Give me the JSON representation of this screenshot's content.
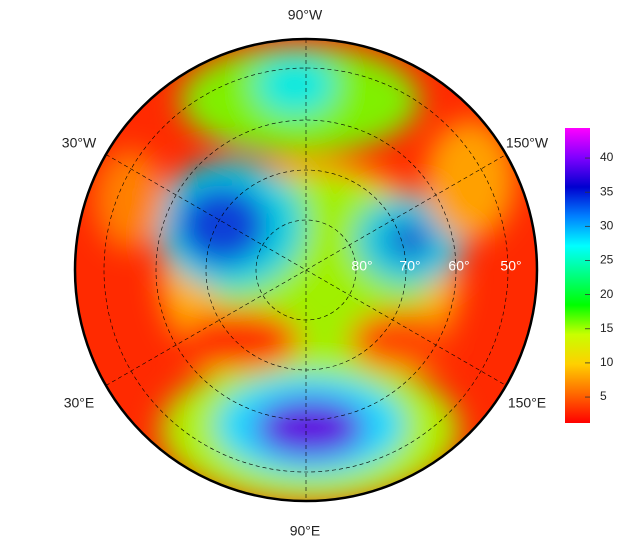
{
  "map": {
    "longitude_labels": [
      "90°W",
      "30°W",
      "150°W",
      "30°E",
      "150°E",
      "90°E"
    ],
    "latitude_labels": [
      "80°",
      "70°",
      "60°",
      "50°"
    ]
  },
  "colorbar": {
    "lim": [
      1.2,
      44.4
    ],
    "ticks": [
      5,
      10,
      15,
      20,
      25,
      30,
      35,
      40
    ],
    "colormap": [
      "#ff0000",
      "#ff6a00",
      "#ffd000",
      "#c8ff00",
      "#00ff00",
      "#00ff80",
      "#00ffff",
      "#0080ff",
      "#0000d0",
      "#8000ff",
      "#ff00ff"
    ]
  }
}
